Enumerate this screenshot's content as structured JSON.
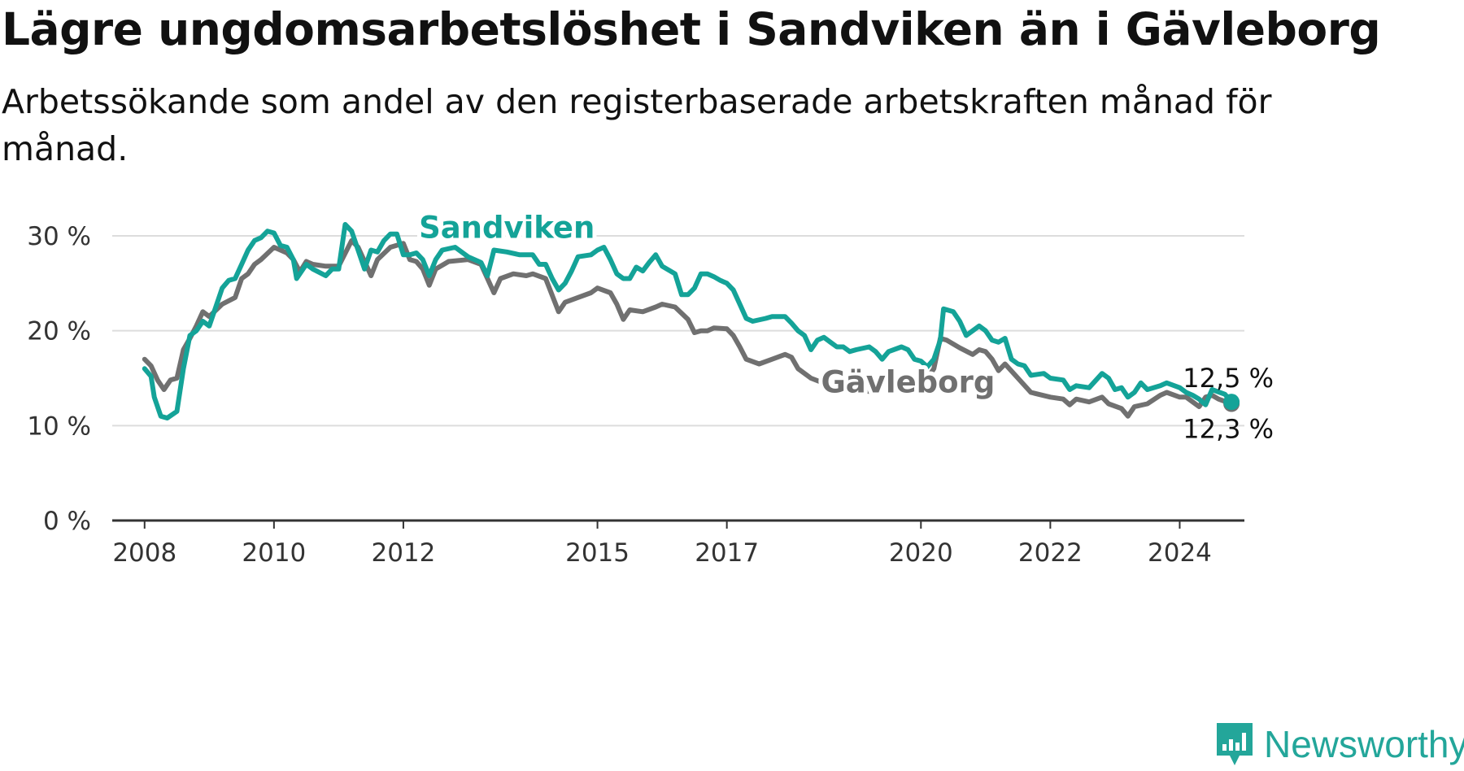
{
  "title": "Lägre ungdomsarbetslöshet i Sandviken än i Gävleborg",
  "subtitle": "Arbetssökande som andel av den registerbaserade arbetskraften månad för månad.",
  "brand": "Newsworthy",
  "chart_data": {
    "type": "line",
    "ylim": [
      0,
      30
    ],
    "yticks": [
      0,
      10,
      20,
      30
    ],
    "ytick_labels": [
      "0 %",
      "10 %",
      "20 %",
      "30 %"
    ],
    "xlim": [
      2007.5,
      2025.0
    ],
    "xticks": [
      2008,
      2010,
      2012,
      2015,
      2017,
      2020,
      2022,
      2024
    ],
    "xtick_labels": [
      "2008",
      "2010",
      "2012",
      "2015",
      "2017",
      "2020",
      "2022",
      "2024"
    ],
    "grid": true,
    "series": [
      {
        "name": "Gävleborg",
        "color": "#707070",
        "end_label": "12,3 %",
        "points": [
          [
            2008.0,
            17.0
          ],
          [
            2008.1,
            16.3
          ],
          [
            2008.2,
            14.8
          ],
          [
            2008.3,
            13.8
          ],
          [
            2008.4,
            14.8
          ],
          [
            2008.5,
            15.0
          ],
          [
            2008.6,
            18.0
          ],
          [
            2008.7,
            19.2
          ],
          [
            2008.8,
            20.5
          ],
          [
            2008.9,
            22.0
          ],
          [
            2009.0,
            21.5
          ],
          [
            2009.2,
            22.8
          ],
          [
            2009.4,
            23.5
          ],
          [
            2009.5,
            25.5
          ],
          [
            2009.6,
            26.0
          ],
          [
            2009.7,
            27.0
          ],
          [
            2009.8,
            27.5
          ],
          [
            2010.0,
            28.8
          ],
          [
            2010.2,
            28.2
          ],
          [
            2010.3,
            27.5
          ],
          [
            2010.4,
            26.2
          ],
          [
            2010.5,
            27.3
          ],
          [
            2010.6,
            27.0
          ],
          [
            2010.8,
            26.8
          ],
          [
            2011.0,
            26.8
          ],
          [
            2011.2,
            29.5
          ],
          [
            2011.3,
            28.8
          ],
          [
            2011.5,
            25.8
          ],
          [
            2011.6,
            27.5
          ],
          [
            2011.8,
            28.8
          ],
          [
            2012.0,
            29.2
          ],
          [
            2012.1,
            27.5
          ],
          [
            2012.2,
            27.3
          ],
          [
            2012.3,
            26.5
          ],
          [
            2012.4,
            24.8
          ],
          [
            2012.5,
            26.5
          ],
          [
            2012.7,
            27.3
          ],
          [
            2013.0,
            27.5
          ],
          [
            2013.2,
            27.0
          ],
          [
            2013.4,
            24.0
          ],
          [
            2013.5,
            25.5
          ],
          [
            2013.7,
            26.0
          ],
          [
            2013.9,
            25.8
          ],
          [
            2014.0,
            26.0
          ],
          [
            2014.2,
            25.5
          ],
          [
            2014.4,
            22.0
          ],
          [
            2014.5,
            23.0
          ],
          [
            2014.7,
            23.5
          ],
          [
            2014.9,
            24.0
          ],
          [
            2015.0,
            24.5
          ],
          [
            2015.2,
            24.0
          ],
          [
            2015.3,
            22.8
          ],
          [
            2015.4,
            21.2
          ],
          [
            2015.5,
            22.2
          ],
          [
            2015.7,
            22.0
          ],
          [
            2015.9,
            22.5
          ],
          [
            2016.0,
            22.8
          ],
          [
            2016.2,
            22.5
          ],
          [
            2016.4,
            21.2
          ],
          [
            2016.5,
            19.8
          ],
          [
            2016.6,
            20.0
          ],
          [
            2016.7,
            20.0
          ],
          [
            2016.8,
            20.3
          ],
          [
            2017.0,
            20.2
          ],
          [
            2017.1,
            19.5
          ],
          [
            2017.2,
            18.3
          ],
          [
            2017.3,
            17.0
          ],
          [
            2017.5,
            16.5
          ],
          [
            2017.7,
            17.0
          ],
          [
            2017.9,
            17.5
          ],
          [
            2018.0,
            17.2
          ],
          [
            2018.1,
            16.0
          ],
          [
            2018.3,
            15.0
          ],
          [
            2018.6,
            14.2
          ],
          [
            2018.9,
            13.8
          ],
          [
            2019.2,
            13.6
          ],
          [
            2019.5,
            14.2
          ],
          [
            2019.8,
            14.5
          ],
          [
            2020.0,
            15.0
          ],
          [
            2020.1,
            15.0
          ],
          [
            2020.2,
            16.0
          ],
          [
            2020.3,
            19.2
          ],
          [
            2020.4,
            19.0
          ],
          [
            2020.6,
            18.2
          ],
          [
            2020.8,
            17.5
          ],
          [
            2020.9,
            18.0
          ],
          [
            2021.0,
            17.8
          ],
          [
            2021.1,
            17.0
          ],
          [
            2021.2,
            15.8
          ],
          [
            2021.3,
            16.5
          ],
          [
            2021.5,
            15.0
          ],
          [
            2021.7,
            13.5
          ],
          [
            2022.0,
            13.0
          ],
          [
            2022.2,
            12.8
          ],
          [
            2022.3,
            12.2
          ],
          [
            2022.4,
            12.8
          ],
          [
            2022.6,
            12.5
          ],
          [
            2022.8,
            13.0
          ],
          [
            2022.9,
            12.3
          ],
          [
            2023.1,
            11.8
          ],
          [
            2023.2,
            11.0
          ],
          [
            2023.3,
            12.0
          ],
          [
            2023.5,
            12.3
          ],
          [
            2023.7,
            13.2
          ],
          [
            2023.8,
            13.5
          ],
          [
            2024.0,
            13.0
          ],
          [
            2024.1,
            13.0
          ],
          [
            2024.2,
            12.5
          ],
          [
            2024.3,
            12.0
          ],
          [
            2024.4,
            13.0
          ],
          [
            2024.5,
            13.2
          ],
          [
            2024.6,
            12.8
          ],
          [
            2024.8,
            12.3
          ]
        ]
      },
      {
        "name": "Sandviken",
        "color": "#14a398",
        "end_label": "12,5 %",
        "points": [
          [
            2008.0,
            16.0
          ],
          [
            2008.1,
            15.2
          ],
          [
            2008.15,
            13.0
          ],
          [
            2008.25,
            11.0
          ],
          [
            2008.35,
            10.8
          ],
          [
            2008.5,
            11.5
          ],
          [
            2008.6,
            16.0
          ],
          [
            2008.7,
            19.5
          ],
          [
            2008.8,
            20.0
          ],
          [
            2008.9,
            21.0
          ],
          [
            2009.0,
            20.5
          ],
          [
            2009.1,
            22.5
          ],
          [
            2009.2,
            24.5
          ],
          [
            2009.3,
            25.3
          ],
          [
            2009.4,
            25.5
          ],
          [
            2009.5,
            27.0
          ],
          [
            2009.6,
            28.5
          ],
          [
            2009.7,
            29.5
          ],
          [
            2009.8,
            29.8
          ],
          [
            2009.9,
            30.5
          ],
          [
            2010.0,
            30.3
          ],
          [
            2010.1,
            29.0
          ],
          [
            2010.2,
            28.8
          ],
          [
            2010.3,
            27.5
          ],
          [
            2010.35,
            25.5
          ],
          [
            2010.5,
            27.0
          ],
          [
            2010.6,
            26.5
          ],
          [
            2010.8,
            25.8
          ],
          [
            2010.9,
            26.5
          ],
          [
            2011.0,
            26.5
          ],
          [
            2011.1,
            31.2
          ],
          [
            2011.2,
            30.5
          ],
          [
            2011.3,
            28.5
          ],
          [
            2011.4,
            26.5
          ],
          [
            2011.5,
            28.5
          ],
          [
            2011.6,
            28.3
          ],
          [
            2011.7,
            29.5
          ],
          [
            2011.8,
            30.2
          ],
          [
            2011.9,
            30.2
          ],
          [
            2012.0,
            28.0
          ],
          [
            2012.1,
            28.0
          ],
          [
            2012.2,
            28.2
          ],
          [
            2012.3,
            27.5
          ],
          [
            2012.4,
            25.8
          ],
          [
            2012.5,
            27.5
          ],
          [
            2012.6,
            28.5
          ],
          [
            2012.8,
            28.8
          ],
          [
            2013.0,
            27.8
          ],
          [
            2013.2,
            27.2
          ],
          [
            2013.3,
            25.8
          ],
          [
            2013.4,
            28.5
          ],
          [
            2013.6,
            28.3
          ],
          [
            2013.8,
            28.0
          ],
          [
            2014.0,
            28.0
          ],
          [
            2014.1,
            27.0
          ],
          [
            2014.2,
            27.0
          ],
          [
            2014.3,
            25.5
          ],
          [
            2014.4,
            24.3
          ],
          [
            2014.5,
            25.0
          ],
          [
            2014.6,
            26.3
          ],
          [
            2014.7,
            27.8
          ],
          [
            2014.9,
            28.0
          ],
          [
            2015.0,
            28.5
          ],
          [
            2015.1,
            28.8
          ],
          [
            2015.2,
            27.5
          ],
          [
            2015.3,
            26.0
          ],
          [
            2015.4,
            25.5
          ],
          [
            2015.5,
            25.5
          ],
          [
            2015.6,
            26.7
          ],
          [
            2015.7,
            26.3
          ],
          [
            2015.8,
            27.2
          ],
          [
            2015.9,
            28.0
          ],
          [
            2016.0,
            26.8
          ],
          [
            2016.2,
            26.0
          ],
          [
            2016.3,
            23.8
          ],
          [
            2016.4,
            23.8
          ],
          [
            2016.5,
            24.5
          ],
          [
            2016.6,
            26.0
          ],
          [
            2016.7,
            26.0
          ],
          [
            2016.8,
            25.7
          ],
          [
            2016.9,
            25.3
          ],
          [
            2017.0,
            25.0
          ],
          [
            2017.1,
            24.3
          ],
          [
            2017.2,
            22.8
          ],
          [
            2017.3,
            21.3
          ],
          [
            2017.4,
            21.0
          ],
          [
            2017.6,
            21.3
          ],
          [
            2017.7,
            21.5
          ],
          [
            2017.9,
            21.5
          ],
          [
            2018.0,
            20.8
          ],
          [
            2018.1,
            20.0
          ],
          [
            2018.2,
            19.5
          ],
          [
            2018.3,
            18.0
          ],
          [
            2018.4,
            19.0
          ],
          [
            2018.5,
            19.3
          ],
          [
            2018.6,
            18.8
          ],
          [
            2018.7,
            18.3
          ],
          [
            2018.8,
            18.3
          ],
          [
            2018.9,
            17.8
          ],
          [
            2019.0,
            18.0
          ],
          [
            2019.2,
            18.3
          ],
          [
            2019.3,
            17.8
          ],
          [
            2019.4,
            17.0
          ],
          [
            2019.5,
            17.8
          ],
          [
            2019.7,
            18.3
          ],
          [
            2019.8,
            18.0
          ],
          [
            2019.9,
            17.0
          ],
          [
            2020.0,
            16.8
          ],
          [
            2020.1,
            16.2
          ],
          [
            2020.2,
            17.0
          ],
          [
            2020.3,
            19.0
          ],
          [
            2020.35,
            22.3
          ],
          [
            2020.5,
            22.0
          ],
          [
            2020.6,
            21.0
          ],
          [
            2020.7,
            19.5
          ],
          [
            2020.8,
            20.0
          ],
          [
            2020.9,
            20.5
          ],
          [
            2021.0,
            20.0
          ],
          [
            2021.1,
            19.0
          ],
          [
            2021.2,
            18.8
          ],
          [
            2021.3,
            19.2
          ],
          [
            2021.4,
            17.0
          ],
          [
            2021.5,
            16.5
          ],
          [
            2021.6,
            16.3
          ],
          [
            2021.7,
            15.3
          ],
          [
            2021.9,
            15.5
          ],
          [
            2022.0,
            15.0
          ],
          [
            2022.2,
            14.8
          ],
          [
            2022.3,
            13.8
          ],
          [
            2022.4,
            14.2
          ],
          [
            2022.6,
            14.0
          ],
          [
            2022.8,
            15.5
          ],
          [
            2022.9,
            15.0
          ],
          [
            2023.0,
            13.8
          ],
          [
            2023.1,
            14.0
          ],
          [
            2023.2,
            13.0
          ],
          [
            2023.3,
            13.5
          ],
          [
            2023.4,
            14.5
          ],
          [
            2023.5,
            13.8
          ],
          [
            2023.7,
            14.2
          ],
          [
            2023.8,
            14.5
          ],
          [
            2024.0,
            14.0
          ],
          [
            2024.1,
            13.5
          ],
          [
            2024.2,
            13.2
          ],
          [
            2024.3,
            12.8
          ],
          [
            2024.4,
            12.2
          ],
          [
            2024.5,
            13.8
          ],
          [
            2024.7,
            13.3
          ],
          [
            2024.8,
            12.5
          ]
        ]
      }
    ],
    "series_label_positions": {
      "Sandviken": [
        2013.6,
        29.8
      ],
      "Gävleborg": [
        2019.8,
        13.5
      ]
    }
  }
}
